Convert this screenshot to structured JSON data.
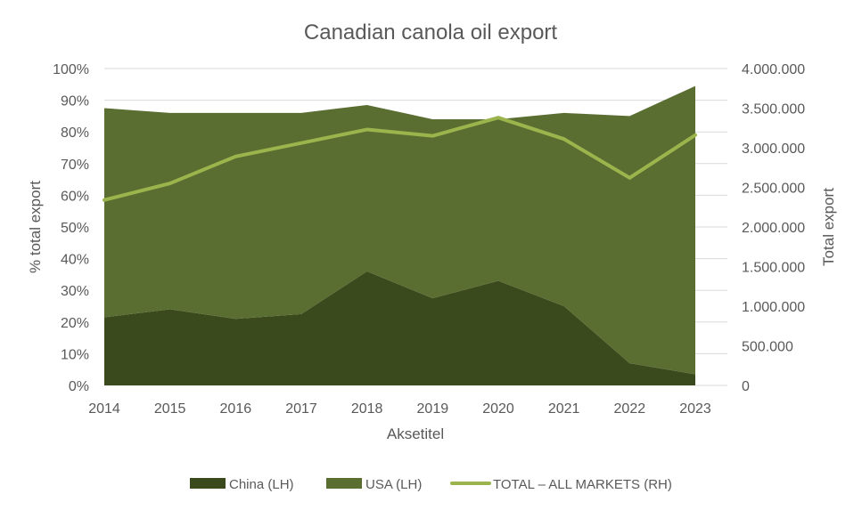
{
  "chart_data": {
    "type": "area",
    "title": "Canadian canola oil export",
    "xlabel": "Aksetitel",
    "ylabel": "% total export",
    "y2label": "Total export",
    "categories": [
      "2014",
      "2015",
      "2016",
      "2017",
      "2018",
      "2019",
      "2020",
      "2021",
      "2022",
      "2023"
    ],
    "ylim": [
      0,
      1
    ],
    "y2lim": [
      0,
      4000000
    ],
    "yticks": [
      "0%",
      "10%",
      "20%",
      "30%",
      "40%",
      "50%",
      "60%",
      "70%",
      "80%",
      "90%",
      "100%"
    ],
    "y2ticks": [
      "0",
      "500.000",
      "1.000.000",
      "1.500.000",
      "2.000.000",
      "2.500.000",
      "3.000.000",
      "3.500.000",
      "4.000.000"
    ],
    "grid": true,
    "legend_position": "bottom",
    "series": [
      {
        "name": "China (LH)",
        "type": "stacked-area",
        "axis": "left",
        "color": "#3a4a1c",
        "values": [
          0.215,
          0.24,
          0.21,
          0.225,
          0.36,
          0.275,
          0.33,
          0.25,
          0.07,
          0.035
        ]
      },
      {
        "name": "USA (LH)",
        "type": "stacked-area",
        "axis": "left",
        "color": "#5a6e32",
        "values": [
          0.66,
          0.62,
          0.65,
          0.635,
          0.525,
          0.565,
          0.51,
          0.61,
          0.78,
          0.91
        ]
      },
      {
        "name": "TOTAL – ALL MARKETS (RH)",
        "type": "line",
        "axis": "right",
        "color": "#9bb54c",
        "values": [
          2340000,
          2550000,
          2890000,
          3060000,
          3230000,
          3150000,
          3380000,
          3110000,
          2620000,
          3160000
        ]
      }
    ]
  }
}
